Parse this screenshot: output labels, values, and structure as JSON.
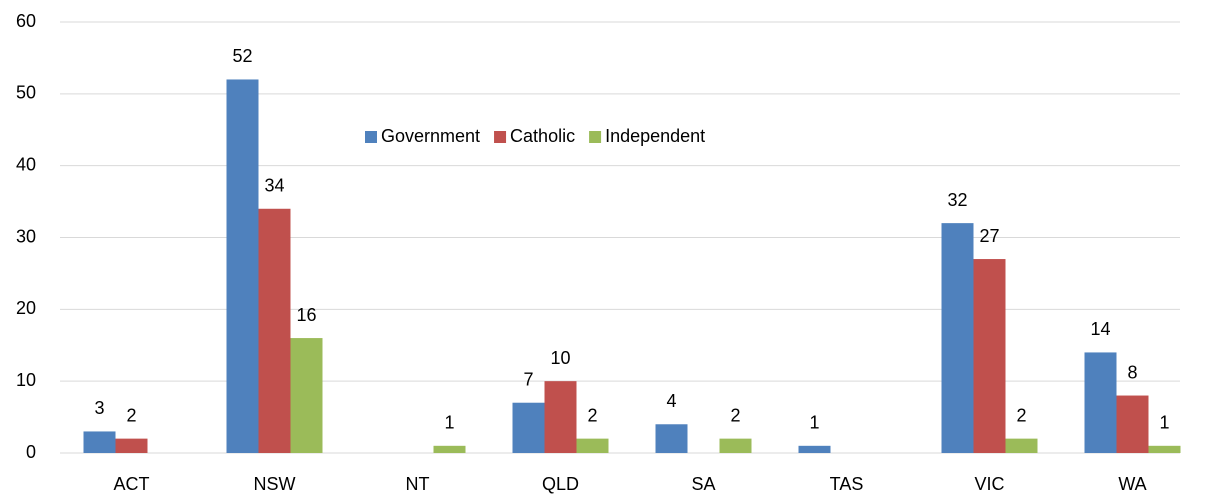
{
  "chart_data": {
    "type": "bar",
    "categories": [
      "ACT",
      "NSW",
      "NT",
      "QLD",
      "SA",
      "TAS",
      "VIC",
      "WA"
    ],
    "series": [
      {
        "name": "Government",
        "color": "#4f81bd",
        "values": [
          3,
          52,
          null,
          7,
          4,
          1,
          32,
          14
        ]
      },
      {
        "name": "Catholic",
        "color": "#c0504d",
        "values": [
          2,
          34,
          null,
          10,
          null,
          null,
          27,
          8
        ]
      },
      {
        "name": "Independent",
        "color": "#9bbb59",
        "values": [
          null,
          16,
          1,
          2,
          2,
          null,
          2,
          1
        ]
      }
    ],
    "ylim": [
      0,
      60
    ],
    "yticks": [
      0,
      10,
      20,
      30,
      40,
      50,
      60
    ],
    "grid": true,
    "legend": "top"
  }
}
